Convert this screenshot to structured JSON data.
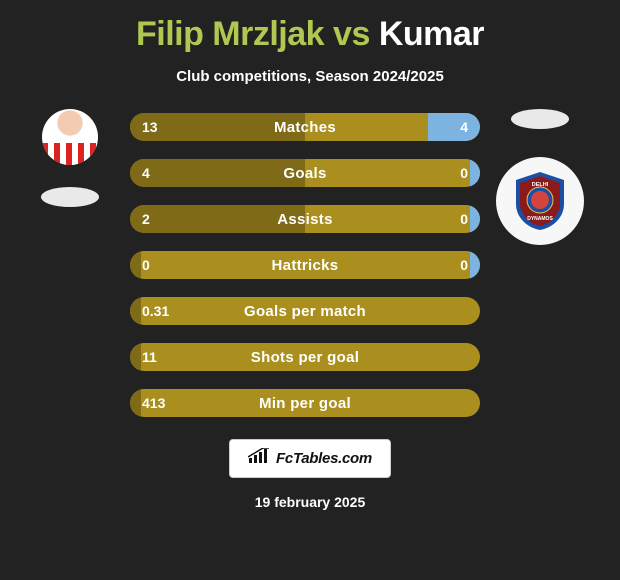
{
  "title": {
    "player1": "Filip Mrzljak",
    "vs": "vs",
    "player2": "Kumar",
    "colors": {
      "p1": "#aec852",
      "p2": "#ffffff"
    }
  },
  "subtitle": "Club competitions, Season 2024/2025",
  "background_color": "#222222",
  "players": {
    "left": {
      "has_photo": true
    },
    "right": {
      "club_badge": {
        "bg": "#f7f7f7",
        "shield_outer": "#1a4fa3",
        "shield_inner": "#8b1a1a",
        "ring": "#e9c54a",
        "text_top": "DELHI",
        "text_bottom": "DYNAMOS"
      }
    }
  },
  "bars": {
    "track_color": "#aa8f1e",
    "left_fill_color": "#7e6a17",
    "right_fill_color": "#7cb3e0",
    "height": 28,
    "radius": 14,
    "rows": [
      {
        "label": "Matches",
        "left_val": "13",
        "right_val": "4",
        "left_pct": 50,
        "right_pct": 15
      },
      {
        "label": "Goals",
        "left_val": "4",
        "right_val": "0",
        "left_pct": 50,
        "right_pct": 3
      },
      {
        "label": "Assists",
        "left_val": "2",
        "right_val": "0",
        "left_pct": 50,
        "right_pct": 3
      },
      {
        "label": "Hattricks",
        "left_val": "0",
        "right_val": "0",
        "left_pct": 3,
        "right_pct": 3
      },
      {
        "label": "Goals per match",
        "left_val": "0.31",
        "right_val": "",
        "left_pct": 3,
        "right_pct": 0
      },
      {
        "label": "Shots per goal",
        "left_val": "11",
        "right_val": "",
        "left_pct": 3,
        "right_pct": 0
      },
      {
        "label": "Min per goal",
        "left_val": "413",
        "right_val": "",
        "left_pct": 3,
        "right_pct": 0
      }
    ]
  },
  "logo": {
    "text": "FcTables.com"
  },
  "date": "19 february 2025"
}
